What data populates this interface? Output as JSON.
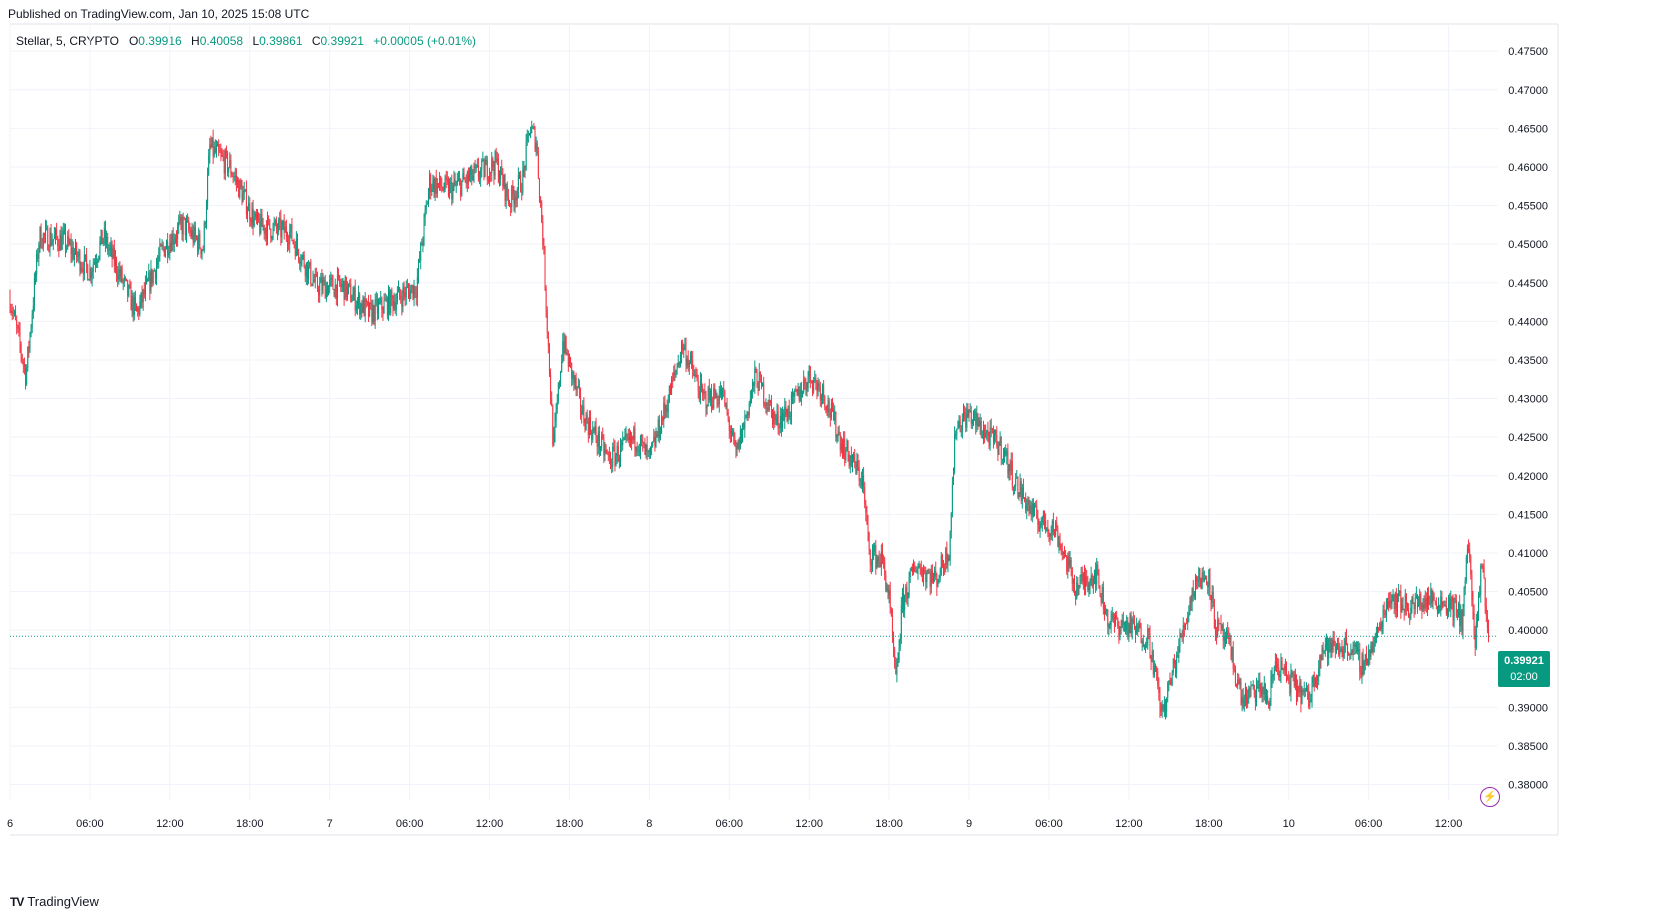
{
  "header": {
    "published": "Published on TradingView.com, Jan 10, 2025 15:08 UTC"
  },
  "legend": {
    "symbol": "Stellar, 5, CRYPTO",
    "open_label": "O",
    "open": "0.39916",
    "high_label": "H",
    "high": "0.40058",
    "low_label": "L",
    "low": "0.39861",
    "close_label": "C",
    "close": "0.39921",
    "change": "+0.00005 (+0.01%)"
  },
  "price_tag": {
    "price": "0.39921",
    "countdown": "02:00"
  },
  "brand": {
    "logo": "TV",
    "name": "TradingView"
  },
  "colors": {
    "up": "#089981",
    "down": "#f23645",
    "grid": "#f0f3fa",
    "accent": "#9c27b0"
  },
  "icons": {
    "alert": "lightning-icon"
  },
  "chart_data": {
    "type": "candlestick",
    "title": "Stellar, 5, CRYPTO",
    "xlabel": "",
    "ylabel": "",
    "ylim": [
      0.378,
      0.478
    ],
    "grid": true,
    "last_price": 0.39921,
    "y_ticks": [
      "0.47500",
      "0.47000",
      "0.46500",
      "0.46000",
      "0.45500",
      "0.45000",
      "0.44500",
      "0.44000",
      "0.43500",
      "0.43000",
      "0.42500",
      "0.42000",
      "0.41500",
      "0.41000",
      "0.40500",
      "0.40000",
      "0.39500",
      "0.39000",
      "0.38500",
      "0.38000"
    ],
    "x_ticks": [
      {
        "label": "6",
        "hour": 0
      },
      {
        "label": "06:00",
        "hour": 6
      },
      {
        "label": "12:00",
        "hour": 12
      },
      {
        "label": "18:00",
        "hour": 18
      },
      {
        "label": "7",
        "hour": 24
      },
      {
        "label": "06:00",
        "hour": 30
      },
      {
        "label": "12:00",
        "hour": 36
      },
      {
        "label": "18:00",
        "hour": 42
      },
      {
        "label": "8",
        "hour": 48
      },
      {
        "label": "06:00",
        "hour": 54
      },
      {
        "label": "12:00",
        "hour": 60
      },
      {
        "label": "18:00",
        "hour": 66
      },
      {
        "label": "9",
        "hour": 72
      },
      {
        "label": "06:00",
        "hour": 78
      },
      {
        "label": "12:00",
        "hour": 84
      },
      {
        "label": "18:00",
        "hour": 90
      },
      {
        "label": "10",
        "hour": 96
      },
      {
        "label": "06:00",
        "hour": 102
      },
      {
        "label": "12:00",
        "hour": 108
      }
    ],
    "path": [
      [
        0.0,
        0.443
      ],
      [
        1.2,
        0.433
      ],
      [
        2.2,
        0.451
      ],
      [
        4.0,
        0.4505
      ],
      [
        6.0,
        0.4465
      ],
      [
        7.0,
        0.451
      ],
      [
        9.5,
        0.441
      ],
      [
        11.5,
        0.4495
      ],
      [
        13.0,
        0.4525
      ],
      [
        14.5,
        0.4495
      ],
      [
        15.0,
        0.4625
      ],
      [
        16.5,
        0.46
      ],
      [
        18.5,
        0.4525
      ],
      [
        21.0,
        0.4515
      ],
      [
        23.0,
        0.4445
      ],
      [
        25.0,
        0.4445
      ],
      [
        27.0,
        0.441
      ],
      [
        29.0,
        0.443
      ],
      [
        30.5,
        0.4445
      ],
      [
        31.5,
        0.458
      ],
      [
        33.0,
        0.457
      ],
      [
        35.0,
        0.459
      ],
      [
        36.5,
        0.4605
      ],
      [
        37.5,
        0.4555
      ],
      [
        38.5,
        0.4585
      ],
      [
        39.0,
        0.465
      ],
      [
        39.5,
        0.4635
      ],
      [
        40.0,
        0.451
      ],
      [
        40.8,
        0.4235
      ],
      [
        41.5,
        0.4375
      ],
      [
        43.0,
        0.428
      ],
      [
        45.0,
        0.422
      ],
      [
        47.0,
        0.425
      ],
      [
        48.0,
        0.422
      ],
      [
        49.5,
        0.4305
      ],
      [
        50.5,
        0.437
      ],
      [
        52.0,
        0.43
      ],
      [
        53.5,
        0.4305
      ],
      [
        54.5,
        0.4225
      ],
      [
        56.0,
        0.433
      ],
      [
        57.5,
        0.427
      ],
      [
        58.5,
        0.4285
      ],
      [
        60.0,
        0.433
      ],
      [
        61.0,
        0.431
      ],
      [
        62.5,
        0.424
      ],
      [
        64.0,
        0.4195
      ],
      [
        64.5,
        0.41
      ],
      [
        65.5,
        0.409
      ],
      [
        66.0,
        0.404
      ],
      [
        66.5,
        0.393
      ],
      [
        67.0,
        0.4035
      ],
      [
        68.0,
        0.4085
      ],
      [
        69.5,
        0.4065
      ],
      [
        70.5,
        0.4105
      ],
      [
        71.0,
        0.4265
      ],
      [
        72.0,
        0.428
      ],
      [
        73.5,
        0.425
      ],
      [
        74.5,
        0.4235
      ],
      [
        75.5,
        0.419
      ],
      [
        77.0,
        0.4145
      ],
      [
        78.5,
        0.413
      ],
      [
        80.0,
        0.4055
      ],
      [
        81.5,
        0.4075
      ],
      [
        82.5,
        0.401
      ],
      [
        84.0,
        0.4005
      ],
      [
        85.5,
        0.399
      ],
      [
        86.5,
        0.389
      ],
      [
        88.0,
        0.3995
      ],
      [
        89.0,
        0.4065
      ],
      [
        90.0,
        0.407
      ],
      [
        90.5,
        0.4005
      ],
      [
        91.5,
        0.398
      ],
      [
        92.5,
        0.391
      ],
      [
        94.0,
        0.3925
      ],
      [
        94.5,
        0.3905
      ],
      [
        95.0,
        0.396
      ],
      [
        96.0,
        0.3935
      ],
      [
        97.5,
        0.391
      ],
      [
        98.5,
        0.3975
      ],
      [
        100.5,
        0.398
      ],
      [
        101.5,
        0.3955
      ],
      [
        102.5,
        0.3985
      ],
      [
        103.5,
        0.4045
      ],
      [
        105.0,
        0.403
      ],
      [
        106.5,
        0.404
      ],
      [
        108.0,
        0.4035
      ],
      [
        109.0,
        0.4015
      ],
      [
        109.5,
        0.4115
      ],
      [
        110.0,
        0.3975
      ],
      [
        110.5,
        0.409
      ],
      [
        111.0,
        0.3995
      ]
    ]
  }
}
